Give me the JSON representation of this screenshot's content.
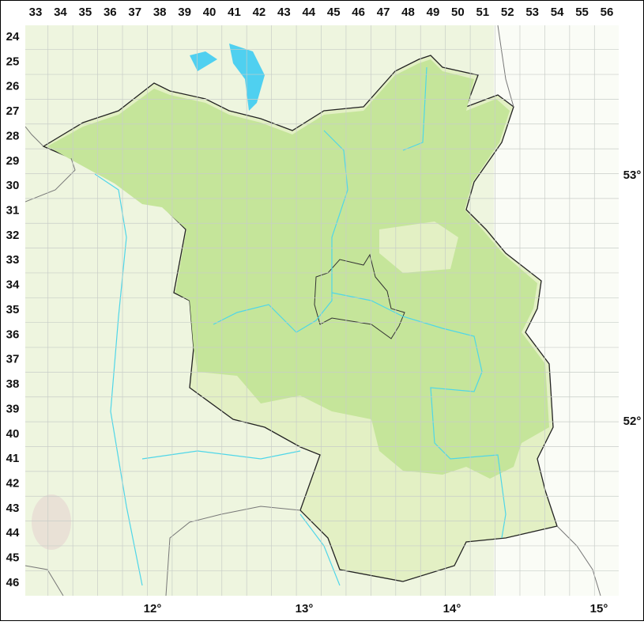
{
  "columns": [
    "33",
    "34",
    "35",
    "36",
    "37",
    "38",
    "39",
    "40",
    "41",
    "42",
    "43",
    "44",
    "45",
    "46",
    "47",
    "48",
    "49",
    "50",
    "51",
    "52",
    "53",
    "54",
    "55",
    "56"
  ],
  "rows": [
    "24",
    "25",
    "26",
    "27",
    "28",
    "29",
    "30",
    "31",
    "32",
    "33",
    "34",
    "35",
    "36",
    "37",
    "38",
    "39",
    "40",
    "41",
    "42",
    "43",
    "44",
    "45",
    "46"
  ],
  "longitudes": [
    "12°",
    "13°",
    "14°",
    "15°"
  ],
  "latitudes": [
    "53°",
    "52°"
  ]
}
